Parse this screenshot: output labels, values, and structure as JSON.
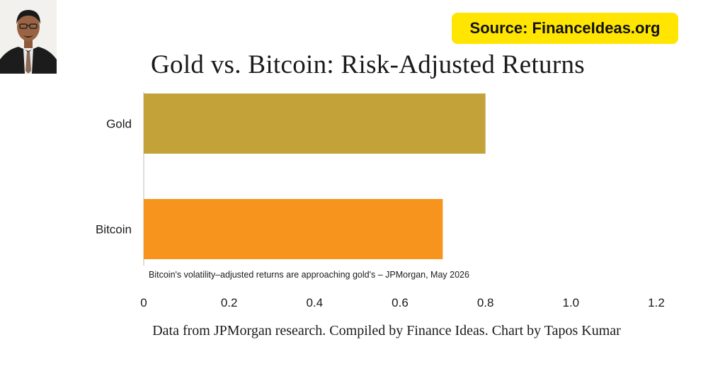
{
  "source_badge": "Source: FinanceIdeas.org",
  "chart_data": {
    "type": "bar",
    "orientation": "horizontal",
    "title": "Gold vs. Bitcoin: Risk-Adjusted Returns",
    "categories": [
      "Gold",
      "Bitcoin"
    ],
    "values": [
      0.8,
      0.7
    ],
    "colors": [
      "#c4a23a",
      "#f7941d"
    ],
    "xlim": [
      0,
      1.2
    ],
    "xticks": [
      "0",
      "0.2",
      "0.4",
      "0.6",
      "0.8",
      "1.0",
      "1.2"
    ],
    "xtick_values": [
      0,
      0.2,
      0.4,
      0.6,
      0.8,
      1.0,
      1.2
    ],
    "annotation": "Bitcoin's volatility–adjusted returns are approaching gold's – JPMorgan, May 2026",
    "grid": false,
    "legend": "none"
  },
  "caption": "Data from JPMorgan research. Compiled by Finance Ideas. Chart by Tapos Kumar"
}
